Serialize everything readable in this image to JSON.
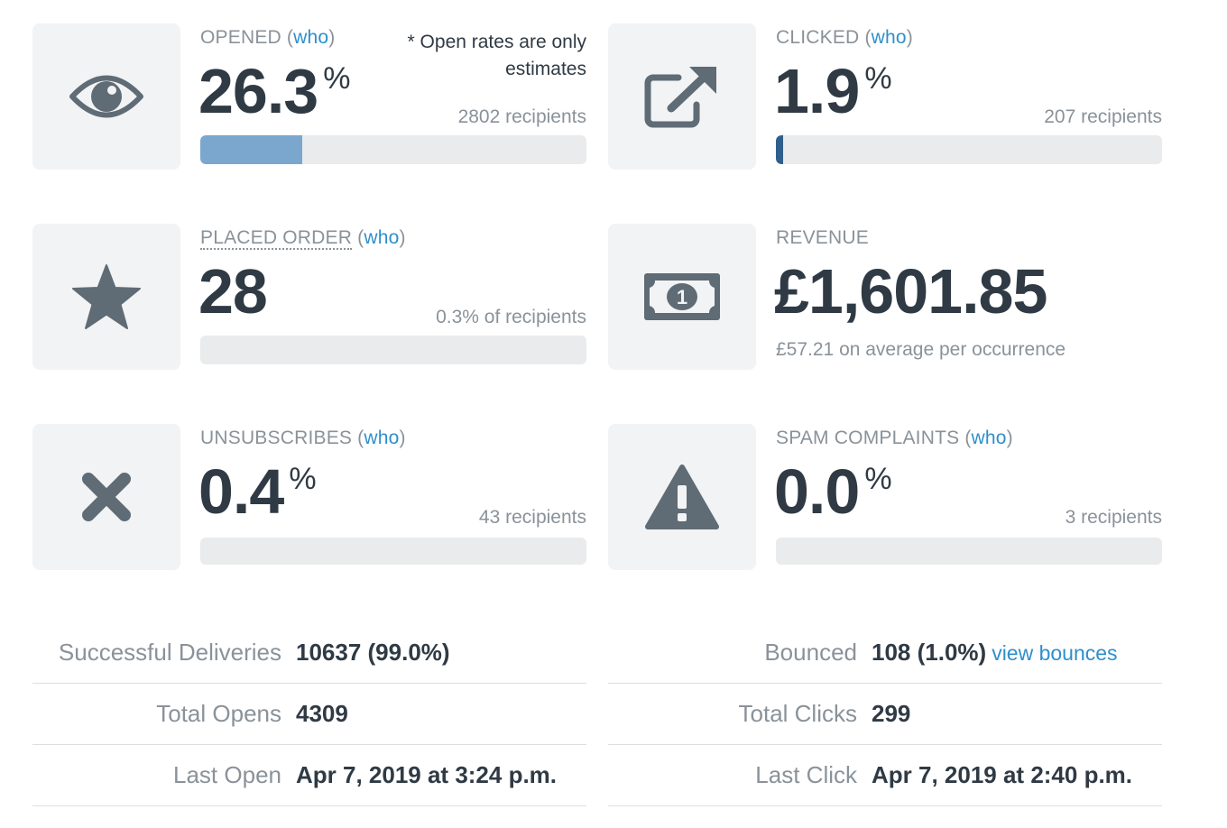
{
  "colors": {
    "link": "#2e8fcc",
    "opened_fill": "#7ba7cf",
    "clicked_fill": "#2f5f8c",
    "bar_track": "#e9ebec",
    "icon": "#5f6b75"
  },
  "opened": {
    "label": "OPENED",
    "who": "who",
    "value": "26.3",
    "unit": "%",
    "note": "* Open rates are only estimates",
    "meta": "2802 recipients",
    "progress": 0.263,
    "icon": "eye-icon"
  },
  "clicked": {
    "label": "CLICKED",
    "who": "who",
    "value": "1.9",
    "unit": "%",
    "meta": "207 recipients",
    "progress": 0.019,
    "icon": "external-link-icon"
  },
  "placed_order": {
    "label": "PLACED ORDER",
    "who": "who",
    "value": "28",
    "meta": "0.3% of recipients",
    "progress": 0.003,
    "icon": "star-icon"
  },
  "revenue": {
    "label": "REVENUE",
    "value": "£1,601.85",
    "meta": "£57.21 on average per occurrence",
    "icon": "money-icon",
    "icon_text": "1"
  },
  "unsubscribes": {
    "label": "UNSUBSCRIBES",
    "who": "who",
    "value": "0.4",
    "unit": "%",
    "meta": "43 recipients",
    "progress": 0.004,
    "icon": "close-icon"
  },
  "spam": {
    "label": "SPAM COMPLAINTS",
    "who": "who",
    "value": "0.0",
    "unit": "%",
    "meta": "3 recipients",
    "progress": 0.0,
    "icon": "warning-icon"
  },
  "stats_left": [
    {
      "label": "Successful Deliveries",
      "value": "10637 (99.0%)"
    },
    {
      "label": "Total Opens",
      "value": "4309"
    },
    {
      "label": "Last Open",
      "value": "Apr 7, 2019 at 3:24 p.m."
    }
  ],
  "stats_right": [
    {
      "label": "Bounced",
      "value": "108 (1.0%)",
      "link": "view bounces"
    },
    {
      "label": "Total Clicks",
      "value": "299"
    },
    {
      "label": "Last Click",
      "value": "Apr 7, 2019 at 2:40 p.m."
    }
  ]
}
